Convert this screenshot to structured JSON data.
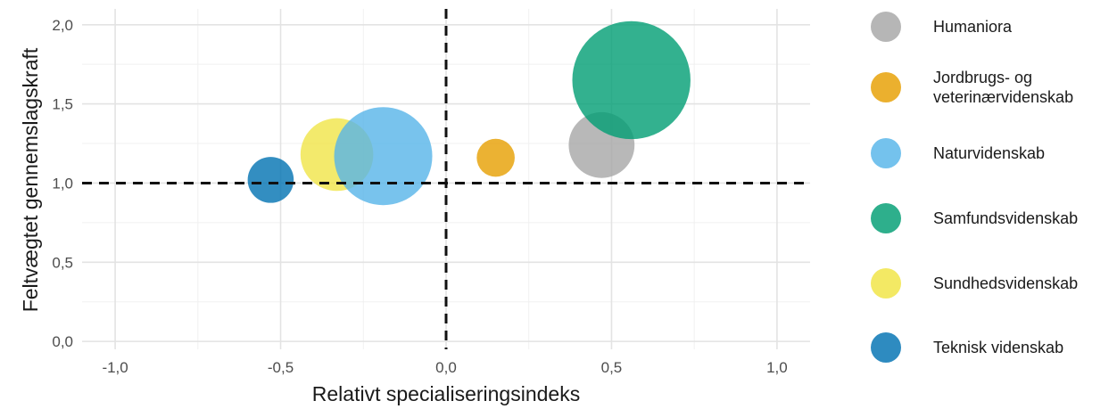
{
  "chart_data": {
    "type": "scatter",
    "xlabel": "Relativt specialiseringsindeks",
    "ylabel": "Feltvægtet gennemslagskraft",
    "xlim": [
      -1.1,
      1.1
    ],
    "ylim": [
      -0.05,
      2.1
    ],
    "x_ticks": [
      -1.0,
      -0.5,
      0.0,
      0.5,
      1.0
    ],
    "x_tick_labels": [
      "-1,0",
      "-0,5",
      "0,0",
      "0,5",
      "1,0"
    ],
    "y_ticks": [
      0.0,
      0.5,
      1.0,
      1.5,
      2.0
    ],
    "y_tick_labels": [
      "0,0",
      "0,5",
      "1,0",
      "1,5",
      "2,0"
    ],
    "reference_lines": {
      "x": 0.0,
      "y": 1.0,
      "style": "dashed"
    },
    "grid": true,
    "legend_position": "right",
    "series": [
      {
        "name": "Humaniora",
        "x": 0.47,
        "y": 1.24,
        "size": 0.45,
        "color": "#a6a6a6"
      },
      {
        "name": "Jordbrugs- og\nveterinærvidenskab",
        "x": 0.15,
        "y": 1.16,
        "size": 0.15,
        "color": "#e69f00"
      },
      {
        "name": "Naturvidenskab",
        "x": -0.19,
        "y": 1.17,
        "size": 1.0,
        "color": "#56b4e9"
      },
      {
        "name": "Samfundsvidenskab",
        "x": 0.56,
        "y": 1.65,
        "size": 1.45,
        "color": "#009e73"
      },
      {
        "name": "Sundhedsvidenskab",
        "x": -0.33,
        "y": 1.18,
        "size": 0.55,
        "color": "#f0e442"
      },
      {
        "name": "Teknisk videnskab",
        "x": -0.53,
        "y": 1.02,
        "size": 0.22,
        "color": "#0072b2"
      }
    ]
  }
}
